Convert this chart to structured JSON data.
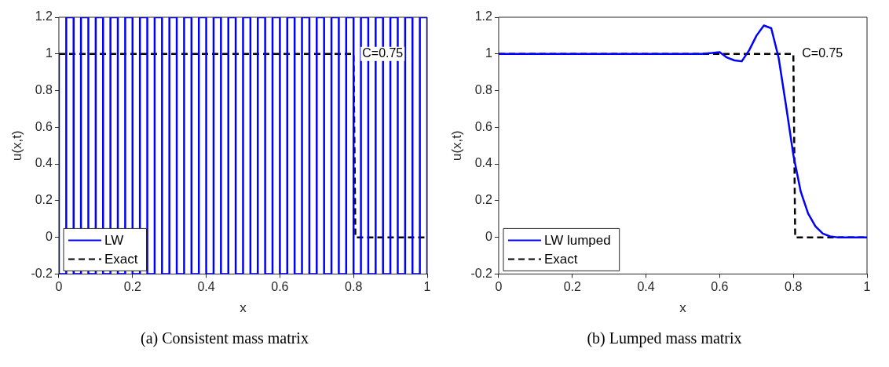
{
  "chart_data": [
    {
      "type": "line",
      "title": "(a) Consistent mass matrix",
      "xlabel": "x",
      "ylabel": "u(x,t)",
      "xlim": [
        0,
        1
      ],
      "ylim": [
        -0.2,
        1.2
      ],
      "xticks": [
        0,
        0.2,
        0.4,
        0.6,
        0.8,
        1
      ],
      "yticks": [
        -0.2,
        0,
        0.2,
        0.4,
        0.6,
        0.8,
        1,
        1.2
      ],
      "grid": false,
      "legend": "bottom left",
      "annotations": [
        "C=0.75"
      ],
      "series": [
        {
          "name": "LW",
          "color": "#0000ff",
          "line_style": "solid",
          "x": [
            0,
            0,
            0.02,
            0.02,
            0.04,
            0.04,
            0.06,
            0.06,
            0.08,
            0.08,
            0.1,
            0.1,
            0.12,
            0.12,
            0.14,
            0.14,
            0.16,
            0.16,
            0.18,
            0.18,
            0.2,
            0.2,
            0.22,
            0.22,
            0.24,
            0.24,
            0.26,
            0.26,
            0.28,
            0.28,
            0.3,
            0.3,
            0.32,
            0.32,
            0.34,
            0.34,
            0.36,
            0.36,
            0.38,
            0.38,
            0.4,
            0.4,
            0.42,
            0.42,
            0.44,
            0.44,
            0.46,
            0.46,
            0.48,
            0.48,
            0.5,
            0.5,
            0.52,
            0.52,
            0.54,
            0.54,
            0.56,
            0.56,
            0.58,
            0.58,
            0.6,
            0.6,
            0.62,
            0.62,
            0.64,
            0.64,
            0.66,
            0.66,
            0.68,
            0.68,
            0.7,
            0.7,
            0.72,
            0.72,
            0.74,
            0.74,
            0.76,
            0.76,
            0.78,
            0.78,
            0.8,
            0.8,
            0.82,
            0.82,
            0.84,
            0.84,
            0.86,
            0.86,
            0.88,
            0.88,
            0.9,
            0.9,
            0.92,
            0.92,
            0.94,
            0.94,
            0.96,
            0.96,
            0.98,
            0.98,
            1,
            1
          ],
          "values": [
            1,
            -0.2,
            -0.2,
            1.2,
            1.2,
            -0.2,
            -0.2,
            1.2,
            1.2,
            -0.2,
            -0.2,
            1.2,
            1.2,
            -0.2,
            -0.2,
            1.2,
            1.2,
            -0.2,
            -0.2,
            1.2,
            1.2,
            -0.2,
            -0.2,
            1.2,
            1.2,
            -0.2,
            -0.2,
            1.2,
            1.2,
            -0.2,
            -0.2,
            1.2,
            1.2,
            -0.2,
            -0.2,
            1.2,
            1.2,
            -0.2,
            -0.2,
            1.2,
            1.2,
            -0.2,
            -0.2,
            1.2,
            1.2,
            -0.2,
            -0.2,
            1.2,
            1.2,
            -0.2,
            -0.2,
            1.2,
            1.2,
            -0.2,
            -0.2,
            1.2,
            1.2,
            -0.2,
            -0.2,
            1.2,
            1.2,
            -0.2,
            -0.2,
            1.2,
            1.2,
            -0.2,
            -0.2,
            1.2,
            1.2,
            -0.2,
            -0.2,
            1.2,
            1.2,
            -0.2,
            -0.2,
            1.2,
            1.2,
            -0.2,
            -0.2,
            1.2,
            1.2,
            -0.2,
            -0.2,
            1.2,
            1.2,
            -0.2,
            -0.2,
            1.2,
            1.2,
            -0.2,
            -0.2,
            1.2,
            1.2,
            -0.2,
            -0.2,
            1.2,
            1.2,
            -0.2,
            -0.2,
            1.2,
            1.2,
            -0.2
          ]
        },
        {
          "name": "Exact",
          "color": "#000000",
          "line_style": "dashed",
          "x": [
            0,
            0.8,
            0.805,
            1
          ],
          "values": [
            1,
            1,
            0,
            0
          ]
        }
      ]
    },
    {
      "type": "line",
      "title": "(b) Lumped mass matrix",
      "xlabel": "x",
      "ylabel": "u(x,t)",
      "xlim": [
        0,
        1
      ],
      "ylim": [
        -0.2,
        1.2
      ],
      "xticks": [
        0,
        0.2,
        0.4,
        0.6,
        0.8,
        1
      ],
      "yticks": [
        -0.2,
        0,
        0.2,
        0.4,
        0.6,
        0.8,
        1,
        1.2
      ],
      "grid": false,
      "legend": "bottom left",
      "annotations": [
        "C=0.75"
      ],
      "series": [
        {
          "name": "LW lumped",
          "color": "#0000ff",
          "line_style": "solid",
          "x": [
            0,
            0.5,
            0.55,
            0.58,
            0.6,
            0.62,
            0.64,
            0.66,
            0.68,
            0.7,
            0.72,
            0.74,
            0.76,
            0.78,
            0.8,
            0.82,
            0.84,
            0.86,
            0.88,
            0.9,
            0.92,
            1
          ],
          "values": [
            1,
            1,
            1,
            1.005,
            1.01,
            0.98,
            0.965,
            0.96,
            1.02,
            1.1,
            1.155,
            1.14,
            0.98,
            0.72,
            0.45,
            0.25,
            0.13,
            0.06,
            0.02,
            0.005,
            0,
            0
          ]
        },
        {
          "name": "Exact",
          "color": "#000000",
          "line_style": "dashed",
          "x": [
            0,
            0.8,
            0.805,
            1
          ],
          "values": [
            1,
            1,
            0,
            0
          ]
        }
      ]
    }
  ]
}
